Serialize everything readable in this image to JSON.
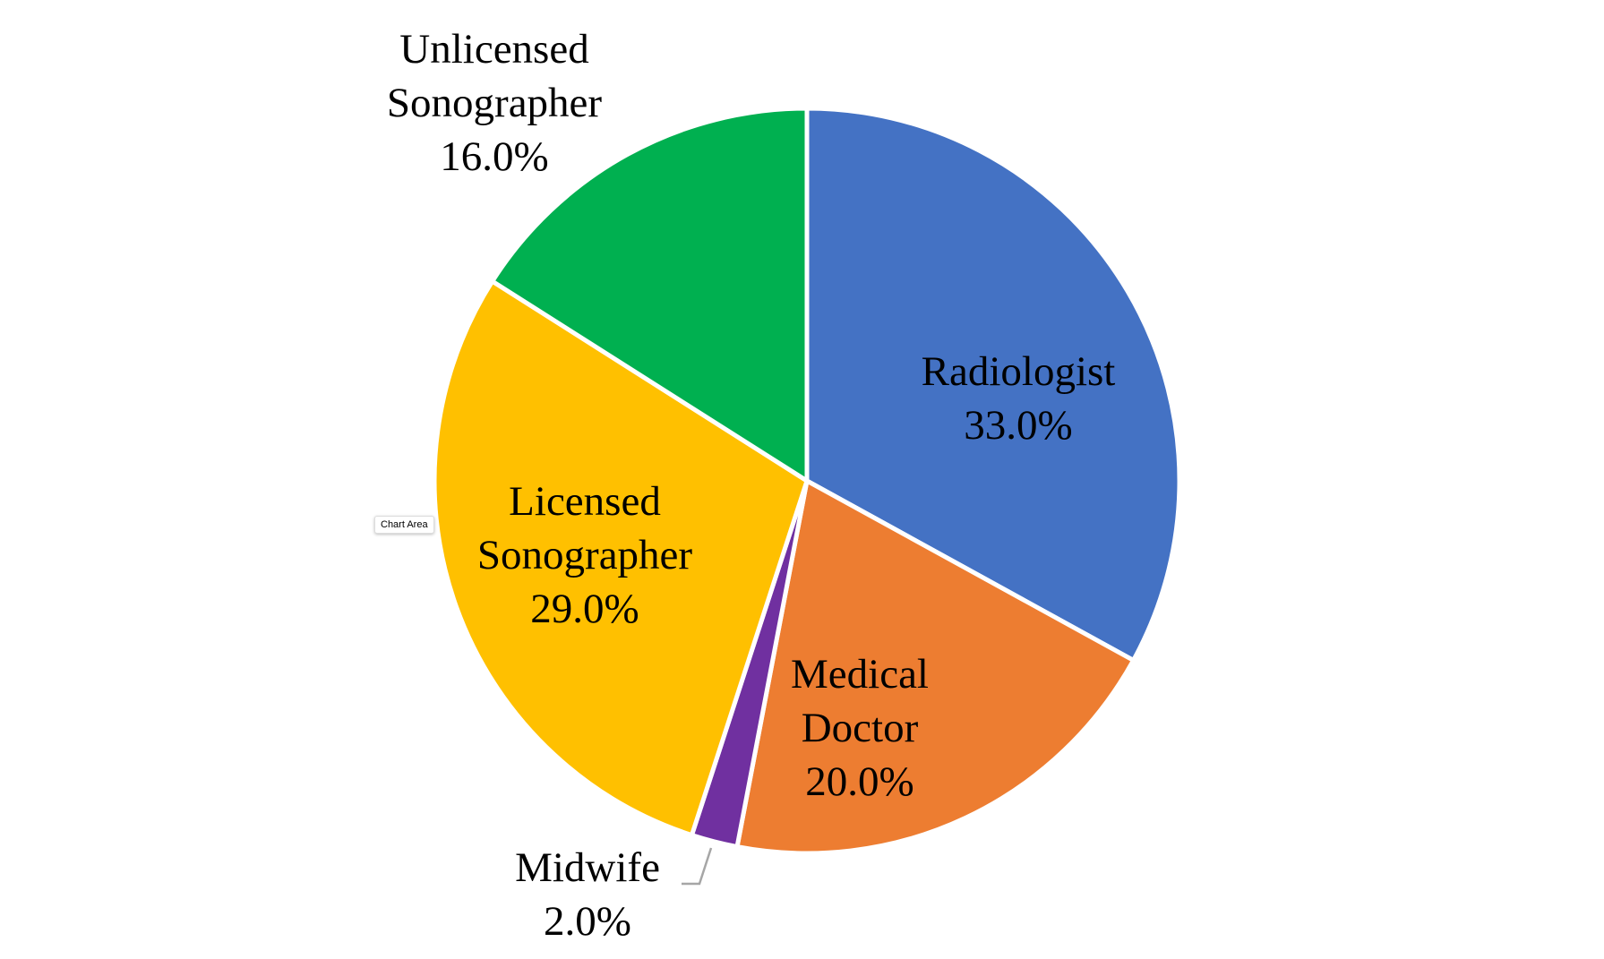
{
  "chart_data": {
    "type": "pie",
    "categories": [
      "Radiologist",
      "Medical Doctor",
      "Midwife",
      "Licensed Sonographer",
      "Unlicensed Sonographer"
    ],
    "values": [
      33,
      20,
      2,
      29,
      16
    ],
    "value_labels": [
      "33.0%",
      "20.0%",
      "2.0%",
      "29.0%",
      "16.0%"
    ],
    "colors": [
      "#4472c4",
      "#ed7d31",
      "#7030a0",
      "#ffc000",
      "#00b050"
    ]
  },
  "tooltip": "Chart Area"
}
